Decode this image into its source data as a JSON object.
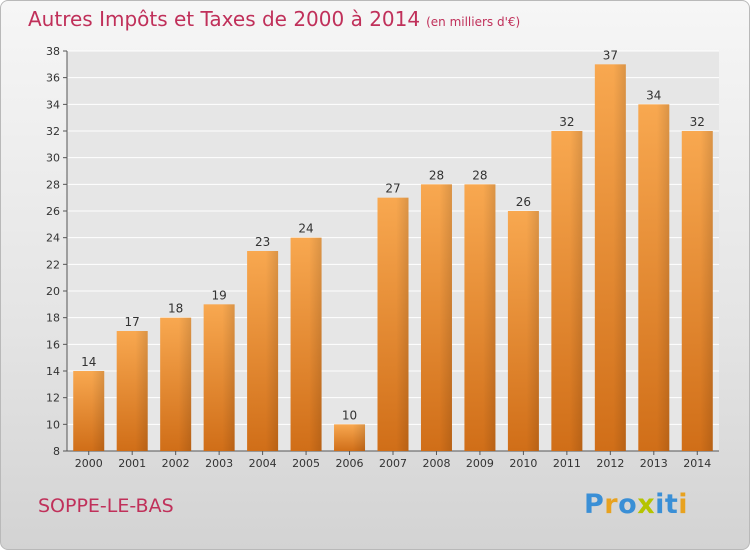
{
  "title": "Autres Impôts et Taxes de 2000 à 2014",
  "unit_note": "(en milliers d'€)",
  "place": "SOPPE-LE-BAS",
  "logo": {
    "text": "Proxiti",
    "letters": [
      {
        "ch": "P",
        "color": "#3a8fd6"
      },
      {
        "ch": "r",
        "color": "#e8a21f"
      },
      {
        "ch": "o",
        "color": "#3a8fd6"
      },
      {
        "ch": "x",
        "color": "#b5c400"
      },
      {
        "ch": "i",
        "color": "#3a8fd6"
      },
      {
        "ch": "t",
        "color": "#3a8fd6"
      },
      {
        "ch": "i",
        "color": "#e8a21f"
      }
    ]
  },
  "colors": {
    "bar_light": "#f8a850",
    "bar_dark": "#d06e18",
    "title": "#c0305a"
  },
  "chart_data": {
    "type": "bar",
    "title": "Autres Impôts et Taxes de 2000 à 2014",
    "subtitle": "(en milliers d'€)",
    "categories": [
      "2000",
      "2001",
      "2002",
      "2003",
      "2004",
      "2005",
      "2006",
      "2007",
      "2008",
      "2009",
      "2010",
      "2011",
      "2012",
      "2013",
      "2014"
    ],
    "values": [
      14,
      17,
      18,
      19,
      23,
      24,
      10,
      27,
      28,
      28,
      26,
      32,
      37,
      34,
      32
    ],
    "ylim": [
      8,
      38
    ],
    "yticks": [
      8,
      10,
      12,
      14,
      16,
      18,
      20,
      22,
      24,
      26,
      28,
      30,
      32,
      34,
      36,
      38
    ],
    "grid": true,
    "data_labels": true
  }
}
